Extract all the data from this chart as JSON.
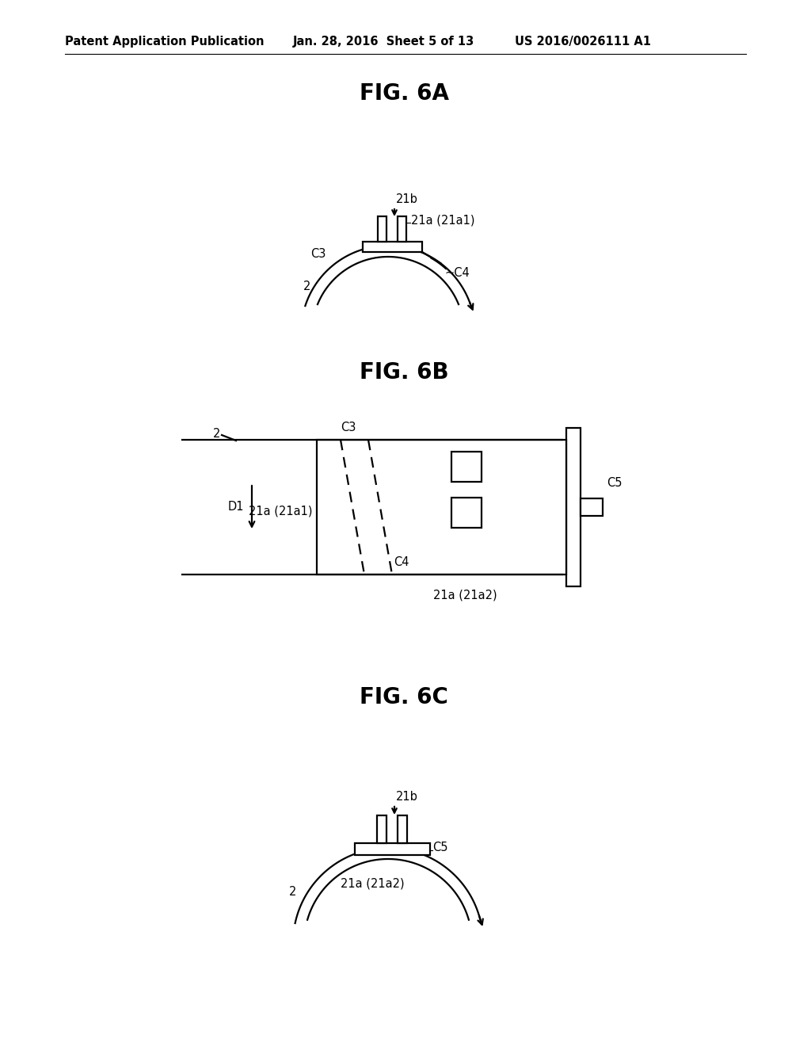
{
  "bg_color": "#ffffff",
  "header_left": "Patent Application Publication",
  "header_mid": "Jan. 28, 2016  Sheet 5 of 13",
  "header_right": "US 2016/0026111 A1",
  "fig6a_title": "FIG. 6A",
  "fig6b_title": "FIG. 6B",
  "fig6c_title": "FIG. 6C",
  "lw_main": 1.6,
  "lw_thick": 2.5,
  "fs_label": 10.5,
  "fs_title": 20,
  "fs_header": 10.5
}
